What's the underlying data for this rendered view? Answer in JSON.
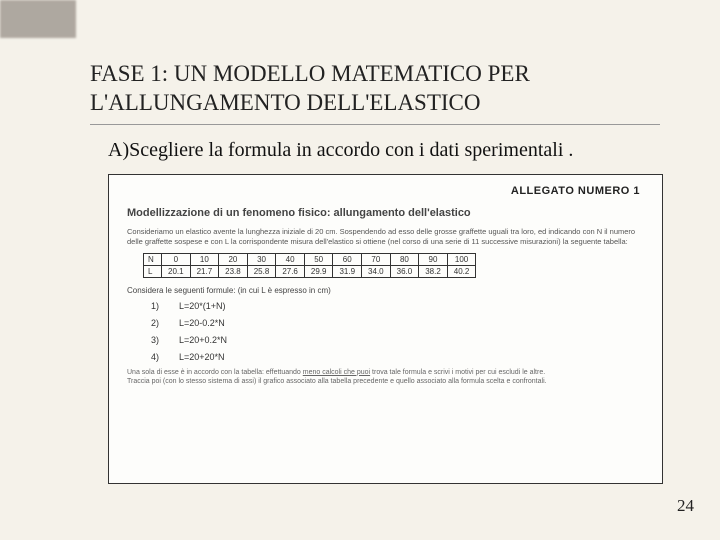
{
  "title": {
    "line1": "FASE 1: UN MODELLO MATEMATICO PER",
    "line2": "L'ALLUNGAMENTO DELL'ELASTICO"
  },
  "subtitle": "A)Scegliere la formula in accordo con i dati sperimentali .",
  "scan": {
    "header": "ALLEGATO NUMERO 1",
    "doc_title": "Modellizzazione di un fenomeno fisico: allungamento dell'elastico",
    "intro": "Consideriamo un elastico avente la lunghezza iniziale di 20 cm. Sospendendo ad esso delle grosse graffette uguali tra loro, ed indicando con N il numero delle graffette sospese e con L la corrispondente misura dell'elastico si ottiene (nel corso di una serie di 11 successive misurazioni) la seguente tabella:",
    "table_labels": [
      "N",
      "L"
    ],
    "table_n": [
      "0",
      "10",
      "20",
      "30",
      "40",
      "50",
      "60",
      "70",
      "80",
      "90",
      "100"
    ],
    "table_l": [
      "20.1",
      "21.7",
      "23.8",
      "25.8",
      "27.6",
      "29.9",
      "31.9",
      "34.0",
      "36.0",
      "38.2",
      "40.2"
    ],
    "consider": "Considera le seguenti formule: (in cui L è espresso in cm)",
    "formulas": [
      {
        "n": "1)",
        "f": "L=20*(1+N)"
      },
      {
        "n": "2)",
        "f": "L=20-0.2*N"
      },
      {
        "n": "3)",
        "f": "L=20+0.2*N"
      },
      {
        "n": "4)",
        "f": "L=20+20*N"
      }
    ],
    "footer_a": "Una sola di esse è in accordo con la tabella: effettuando ",
    "footer_u": "meno calcoli che puoi",
    "footer_b": " trova tale formula e scrivi i motivi per cui escludi le altre.",
    "footer_c": "Traccia poi (con lo stesso sistema di assi) il grafico associato alla tabella precedente e quello associato alla formula scelta e confrontali."
  },
  "page": "24"
}
